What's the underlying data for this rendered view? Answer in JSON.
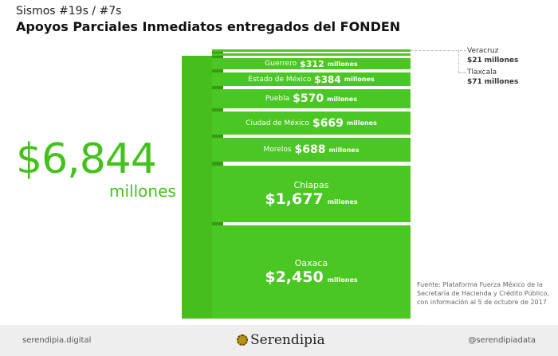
{
  "header": {
    "subtitle": "Sismos #19s / #7s",
    "title": "Apoyos Parciales Inmediatos entregados del FONDEN"
  },
  "total": {
    "amount": "$6,844",
    "unit": "millones"
  },
  "states": [
    {
      "name": "Guerrero",
      "amount": "$312",
      "unit": "millones"
    },
    {
      "name": "Estado de México",
      "amount": "$384",
      "unit": "millones"
    },
    {
      "name": "Puebla",
      "amount": "$570",
      "unit": "millones"
    },
    {
      "name": "Ciudad de México",
      "amount": "$669",
      "unit": "millones"
    },
    {
      "name": "Morelos",
      "amount": "$688",
      "unit": "millones"
    },
    {
      "name": "Chiapas",
      "amount": "$1,677",
      "unit": "millones"
    },
    {
      "name": "Oaxaca",
      "amount": "$2,450",
      "unit": "millones"
    }
  ],
  "annotations": [
    {
      "name": "Veracruz",
      "amount": "$21",
      "unit": "millones"
    },
    {
      "name": "Tlaxcala",
      "amount": "$71",
      "unit": "millones"
    }
  ],
  "source": "Fuente: Plataforma Fuerza México de la Secretaría de Hacienda y Crédito Público, con información al 5 de octubre de 2017",
  "footer": {
    "site": "serendipia.digital",
    "brand": "Serendipia",
    "handle": "@serendipiadata"
  },
  "colors": {
    "green": "#4ac722",
    "dark_green": "#369a12"
  }
}
